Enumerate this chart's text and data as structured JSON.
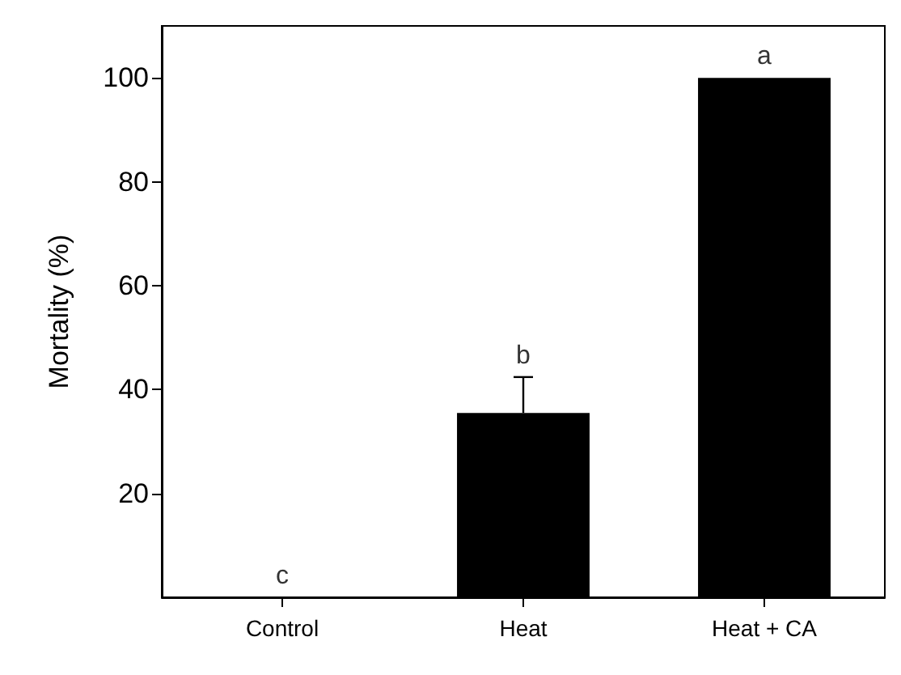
{
  "chart_data": {
    "type": "bar",
    "ylabel": "Mortality (%)",
    "categories": [
      "Control",
      "Heat",
      "Heat + CA"
    ],
    "values": [
      0,
      35.5,
      100
    ],
    "color": "#000000",
    "errors": [
      null,
      [
        35.5,
        42.4
      ],
      null
    ],
    "ylim": [
      0,
      110
    ],
    "yticks": [
      20,
      40,
      60,
      80,
      100
    ],
    "grid": false,
    "annotations": [
      {
        "text": "c",
        "x": "Control",
        "y": 0
      },
      {
        "text": "b",
        "x": "Heat",
        "y": 42.4
      },
      {
        "text": "a",
        "x": "Heat + CA",
        "y": 100
      }
    ]
  }
}
